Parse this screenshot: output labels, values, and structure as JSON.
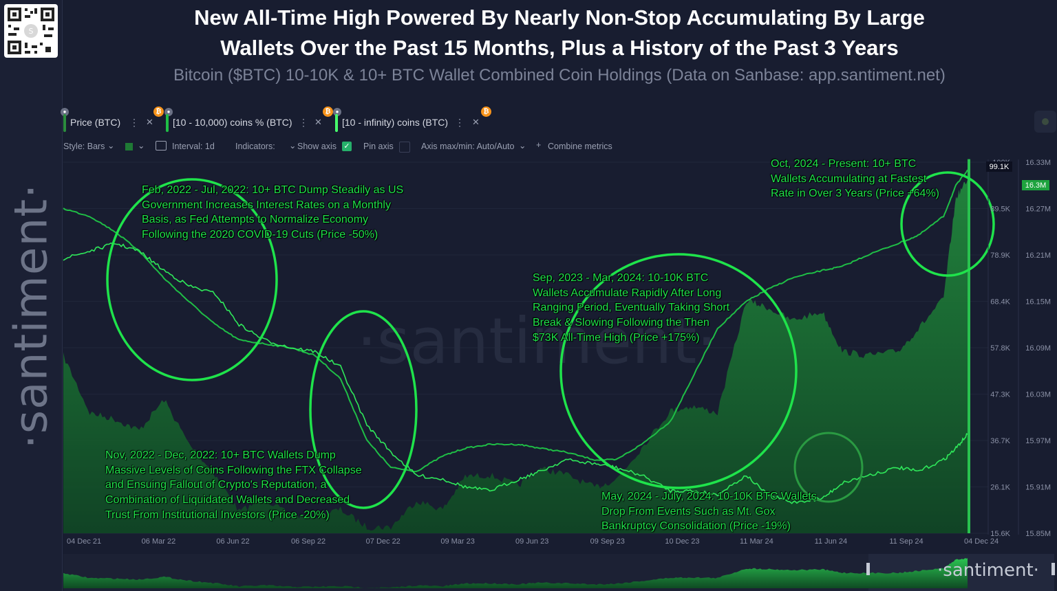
{
  "title_line1": "New All-Time High Powered By Nearly Non-Stop Accumulating By Large",
  "title_line2": "Wallets Over the Past 15 Months, Plus a History of the Past 3 Years",
  "subtitle": "Bitcoin ($BTC) 10-10K & 10+ BTC Wallet Combined Coin Holdings (Data on Sanbase: app.santiment.net)",
  "brand": "·santiment·",
  "watermark": "·santiment·",
  "minimap_brand": "·santiment·",
  "metrics": [
    {
      "label": "Price (BTC)",
      "color": "#2b8c3d"
    },
    {
      "label": "[10 - 10,000) coins % (BTC)",
      "color": "#1fbe46"
    },
    {
      "label": "[10 - infinity) coins (BTC)",
      "color": "#47ff6c"
    }
  ],
  "toolbar": {
    "style": "Style: Bars",
    "interval": "Interval: 1d",
    "indicators": "Indicators:",
    "show_axis": "Show axis",
    "pin_axis": "Pin axis",
    "axis_maxmin": "Axis max/min: Auto/Auto",
    "combine": "Combine metrics"
  },
  "colors": {
    "accent_green": "#1fe34b",
    "price_fill": "#1f7a35",
    "background": "#181d30",
    "btc_orange": "#f7931a"
  },
  "icons": [
    "lock-icon",
    "bitcoin-icon",
    "menu-dots-icon",
    "close-icon",
    "calendar-icon",
    "plus-icon",
    "check-icon",
    "chevron-down-icon"
  ],
  "chart_data": {
    "type": "area",
    "x_ticks": [
      "04 Dec 21",
      "06 Mar 22",
      "06 Jun 22",
      "06 Sep 22",
      "07 Dec 22",
      "09 Mar 23",
      "09 Jun 23",
      "09 Sep 23",
      "10 Dec 23",
      "11 Mar 24",
      "11 Jun 24",
      "11 Sep 24",
      "04 Dec 24"
    ],
    "left_axis_ticks": [
      "100K",
      "89.5K",
      "78.9K",
      "68.4K",
      "57.8K",
      "47.3K",
      "36.7K",
      "26.1K",
      "15.6K"
    ],
    "right_axis_ticks": [
      "16.33M",
      "16.27M",
      "16.21M",
      "16.15M",
      "16.09M",
      "16.03M",
      "15.97M",
      "15.91M",
      "15.85M"
    ],
    "left_ylim": [
      15600,
      100000
    ],
    "right_ylim": [
      15850000,
      16330000
    ],
    "current_price_label": "99.1K",
    "current_holdings_label": "16.3M",
    "series": [
      {
        "name": "Price (BTC)",
        "axis": "left",
        "x": [
          "2021-12-04",
          "2022-01-05",
          "2022-02-05",
          "2022-03-06",
          "2022-04-05",
          "2022-05-05",
          "2022-06-06",
          "2022-07-05",
          "2022-08-05",
          "2022-09-06",
          "2022-10-05",
          "2022-11-05",
          "2022-12-07",
          "2023-01-05",
          "2023-02-05",
          "2023-03-09",
          "2023-04-05",
          "2023-05-05",
          "2023-06-09",
          "2023-07-05",
          "2023-08-05",
          "2023-09-09",
          "2023-10-05",
          "2023-11-05",
          "2023-12-10",
          "2024-01-05",
          "2024-02-05",
          "2024-03-11",
          "2024-04-05",
          "2024-05-05",
          "2024-06-11",
          "2024-07-05",
          "2024-08-05",
          "2024-09-11",
          "2024-10-05",
          "2024-11-05",
          "2024-11-20",
          "2024-12-04"
        ],
        "y": [
          56000,
          43000,
          41500,
          39000,
          46000,
          36000,
          29000,
          20500,
          23500,
          19500,
          19500,
          21000,
          17000,
          17000,
          23000,
          21000,
          28500,
          28800,
          26500,
          30300,
          29000,
          26000,
          27800,
          35000,
          43500,
          44500,
          43000,
          68500,
          67000,
          64000,
          66000,
          57000,
          56000,
          57000,
          62000,
          69000,
          92000,
          96000
        ]
      },
      {
        "name": "[10 - 10,000) coins % (BTC)",
        "axis": "right",
        "x": [
          "2021-12-04",
          "2022-01-05",
          "2022-02-05",
          "2022-03-06",
          "2022-04-05",
          "2022-05-05",
          "2022-06-06",
          "2022-07-05",
          "2022-08-05",
          "2022-09-06",
          "2022-10-05",
          "2022-11-05",
          "2022-12-07",
          "2023-01-05",
          "2023-02-05",
          "2023-03-09",
          "2023-04-05",
          "2023-05-05",
          "2023-06-09",
          "2023-07-05",
          "2023-08-05",
          "2023-09-09",
          "2023-10-05",
          "2023-11-05",
          "2023-12-10",
          "2024-01-05",
          "2024-02-05",
          "2024-03-11",
          "2024-04-05",
          "2024-05-05",
          "2024-06-11",
          "2024-07-05",
          "2024-08-05",
          "2024-09-11",
          "2024-10-05",
          "2024-11-05",
          "2024-11-20",
          "2024-12-04"
        ],
        "y": [
          16270000,
          16260000,
          16240000,
          16215000,
          16180000,
          16150000,
          16120000,
          16100000,
          16095000,
          16090000,
          16080000,
          16050000,
          15970000,
          15935000,
          15930000,
          15950000,
          15960000,
          15965000,
          15965000,
          15960000,
          15955000,
          15945000,
          15945000,
          15965000,
          15995000,
          16050000,
          16115000,
          16150000,
          16165000,
          16180000,
          16190000,
          16195000,
          16210000,
          16225000,
          16235000,
          16260000,
          16300000,
          16320000
        ]
      },
      {
        "name": "[10 - infinity) coins (BTC)",
        "axis": "right",
        "x": [
          "2021-12-04",
          "2022-01-05",
          "2022-02-05",
          "2022-03-06",
          "2022-04-05",
          "2022-05-05",
          "2022-06-06",
          "2022-07-05",
          "2022-08-05",
          "2022-09-06",
          "2022-10-05",
          "2022-11-05",
          "2022-12-07",
          "2023-01-05",
          "2023-02-05",
          "2023-03-09",
          "2023-04-05",
          "2023-05-05",
          "2023-06-09",
          "2023-07-05",
          "2023-08-05",
          "2023-09-09",
          "2023-10-05",
          "2023-11-05",
          "2023-12-10",
          "2024-01-05",
          "2024-02-05",
          "2024-03-11",
          "2024-04-05",
          "2024-05-05",
          "2024-06-11",
          "2024-07-05",
          "2024-08-05",
          "2024-09-11",
          "2024-10-05",
          "2024-11-05",
          "2024-11-20",
          "2024-12-04"
        ],
        "y": [
          16205000,
          16215000,
          16225000,
          16215000,
          16190000,
          16170000,
          16160000,
          16120000,
          16100000,
          16090000,
          16085000,
          16065000,
          15990000,
          15955000,
          15925000,
          15920000,
          15910000,
          15905000,
          15920000,
          15930000,
          15945000,
          15940000,
          15935000,
          15925000,
          15905000,
          15905000,
          15900000,
          15925000,
          15900000,
          15890000,
          15895000,
          15915000,
          15925000,
          15935000,
          15930000,
          15945000,
          15960000,
          15978000
        ]
      }
    ],
    "annotations": [
      {
        "lines": [
          "Feb, 2022 - Jul, 2022: 10+ BTC Dump Steadily as US",
          "Government Increases Interest Rates on a Monthly",
          "Basis, as Fed Attempts to Normalize Economy",
          "Following the 2020 COVID-19 Cuts (Price -50%)"
        ]
      },
      {
        "lines": [
          "Nov, 2022 - Dec, 2022: 10+ BTC Wallets Dump",
          "Massive Levels of Coins Following the FTX Collapse",
          "and Ensuing Fallout of Crypto's Reputation, a",
          "Combination of Liquidated Wallets and Decreased",
          "Trust From Institutional Investors (Price -20%)"
        ]
      },
      {
        "lines": [
          "Sep, 2023 - Mar, 2024: 10-10K BTC",
          "Wallets Accumulate Rapidly After Long",
          "Ranging Period, Eventually Taking  Short",
          "Break & Slowing Following the Then",
          "$73K All-Time High (Price +175%)"
        ]
      },
      {
        "lines": [
          "May, 2024 - July, 2024: 10-10K BTC Wallets",
          "Drop From Events Such as Mt. Gox",
          "Bankruptcy Consolidation (Price -19%)"
        ]
      },
      {
        "lines": [
          "Oct, 2024 - Present: 10+ BTC",
          "Wallets Accumulating at Fastest",
          "Rate in Over 3 Years (Price +64%)"
        ]
      }
    ]
  }
}
